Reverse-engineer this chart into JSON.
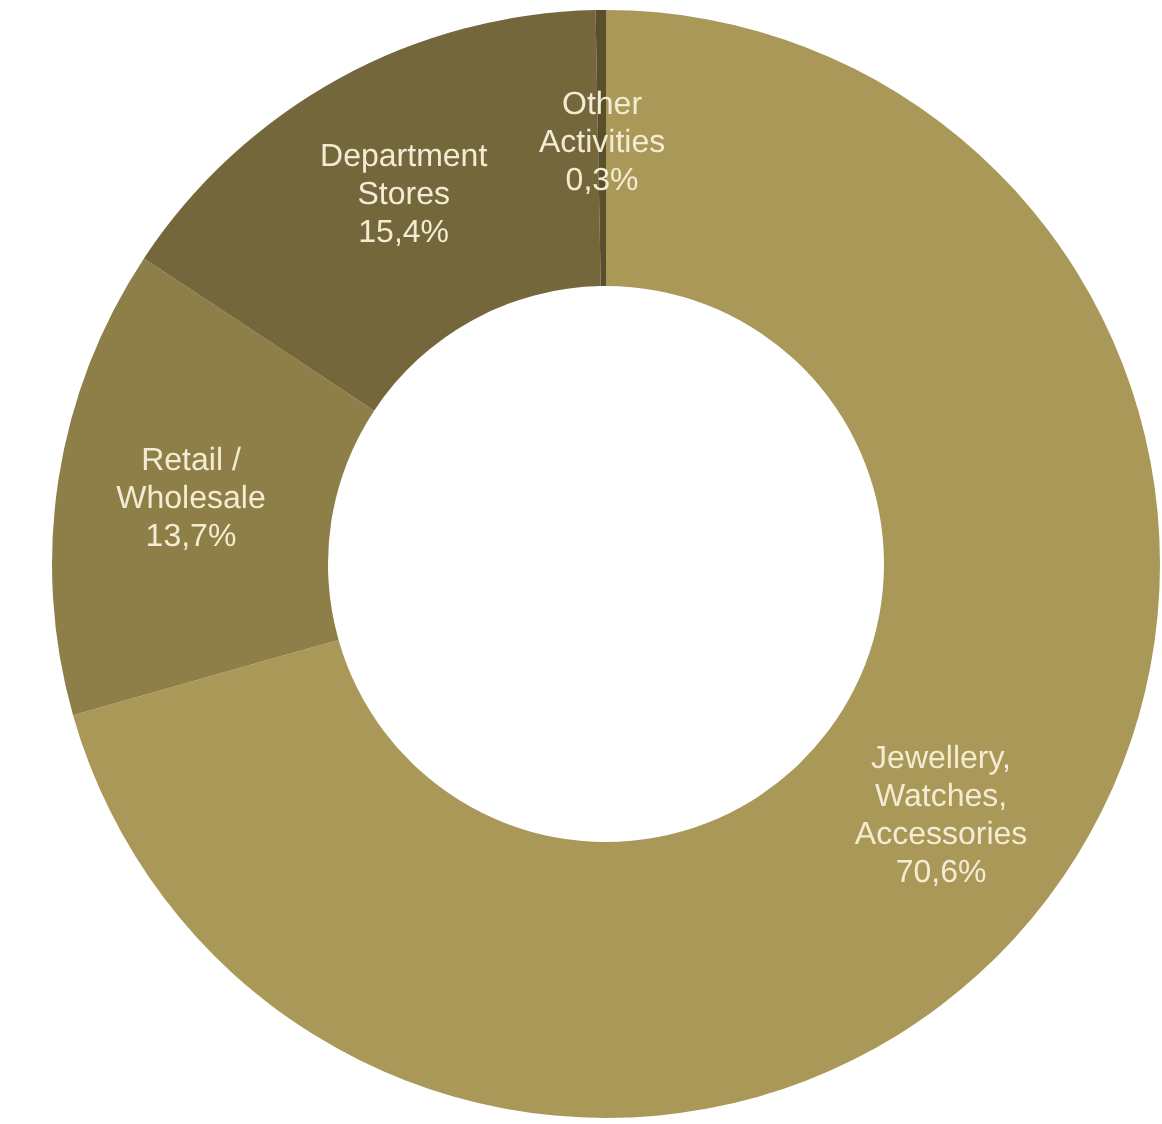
{
  "chart_data": {
    "type": "donut",
    "categories": [
      "Jewellery, Watches, Accessories",
      "Retail / Wholesale",
      "Department Stores",
      "Other Activities"
    ],
    "values": [
      70.6,
      13.7,
      15.4,
      0.3
    ],
    "colors": [
      "#a99858",
      "#8e7f48",
      "#74673b",
      "#5a4f2b"
    ],
    "value_labels": [
      "70,6%",
      "13,7%",
      "15,4%",
      "0,3%"
    ]
  }
}
